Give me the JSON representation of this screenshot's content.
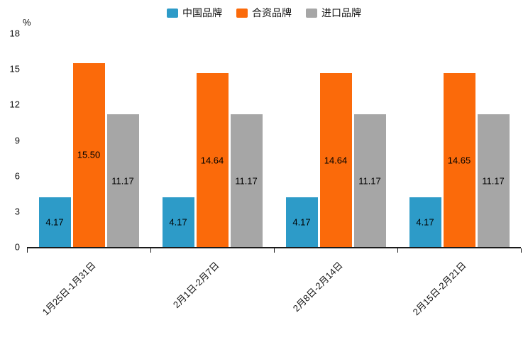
{
  "chart_data": {
    "type": "bar",
    "title": "",
    "xlabel": "",
    "ylabel": "%",
    "ylim": [
      0,
      18
    ],
    "yticks": [
      0,
      3,
      6,
      9,
      12,
      15,
      18
    ],
    "grid": false,
    "legend_position": "top",
    "value_labels": true,
    "axis_color": "#1a1a1a",
    "label_color": "#000000",
    "categories": [
      "1月25日-1月31日",
      "2月1日-2月7日",
      "2月8日-2月14日",
      "2月15日-2月21日"
    ],
    "series": [
      {
        "name": "中国品牌",
        "color": "#2D9BC8",
        "values": [
          4.17,
          4.17,
          4.17,
          4.17
        ],
        "labels": [
          "4.17",
          "4.17",
          "4.17",
          "4.17"
        ]
      },
      {
        "name": "合资品牌",
        "color": "#FB6A0A",
        "values": [
          15.5,
          14.64,
          14.64,
          14.65
        ],
        "labels": [
          "15.50",
          "14.64",
          "14.64",
          "14.65"
        ]
      },
      {
        "name": "进口品牌",
        "color": "#A6A6A6",
        "values": [
          11.17,
          11.17,
          11.17,
          11.17
        ],
        "labels": [
          "11.17",
          "11.17",
          "11.17",
          "11.17"
        ]
      }
    ]
  }
}
